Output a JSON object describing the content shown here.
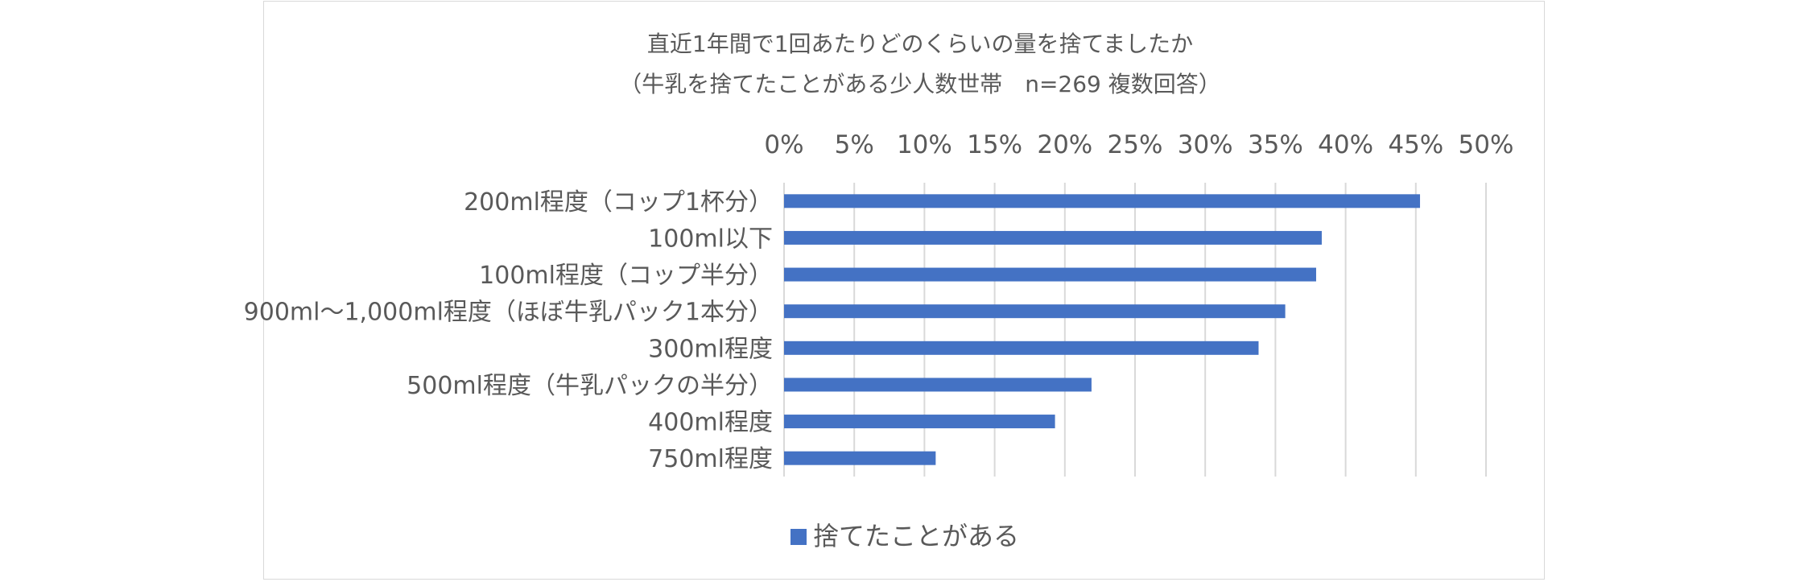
{
  "chart_data": {
    "type": "bar",
    "orientation": "horizontal",
    "title": "直近1年間で1回あたりどのくらいの量を捨てましたか",
    "subtitle": "（牛乳を捨てたことがある少人数世帯　n=269 複数回答）",
    "categories": [
      "200ml程度（コップ1杯分）",
      "100ml以下",
      "100ml程度（コップ半分）",
      "900ml〜1,000ml程度（ほぼ牛乳パック1本分）",
      "300ml程度",
      "500ml程度（牛乳パックの半分）",
      "400ml程度",
      "750ml程度"
    ],
    "series": [
      {
        "name": "捨てたことがある",
        "values": [
          45.3,
          38.3,
          37.9,
          35.7,
          33.8,
          21.9,
          19.3,
          10.8
        ]
      }
    ],
    "xlim": [
      0,
      50
    ],
    "x_ticks": [
      "0%",
      "5%",
      "10%",
      "15%",
      "20%",
      "25%",
      "30%",
      "35%",
      "40%",
      "45%",
      "50%"
    ],
    "xlabel": "",
    "ylabel": "",
    "grid": "vertical",
    "legend_position": "bottom",
    "bar_color": "#4472c4"
  }
}
